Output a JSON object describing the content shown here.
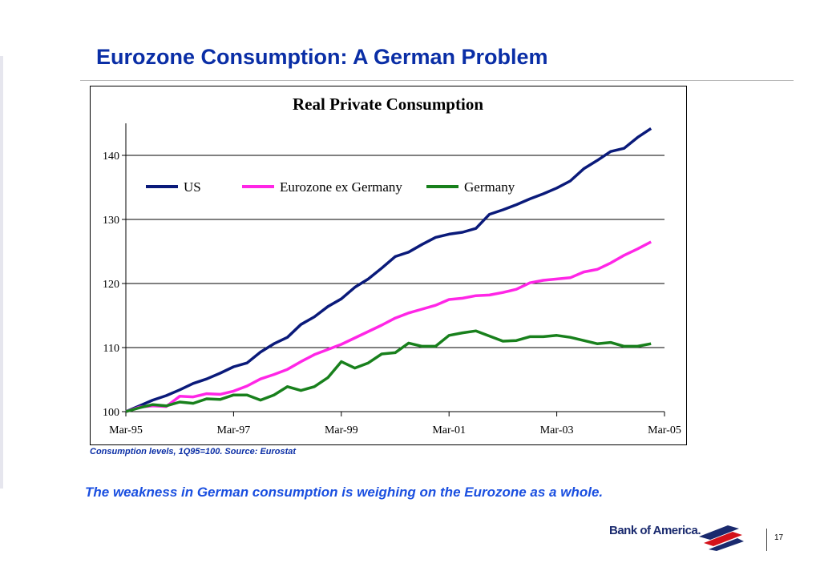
{
  "slide": {
    "title": "Eurozone Consumption: A German Problem",
    "source_note": "Consumption levels, 1Q95=100. Source: Eurostat",
    "caption": "The weakness in German consumption is weighing on the Eurozone as a whole.",
    "page_number": "17",
    "logo_text": "Bank of America."
  },
  "chart_data": {
    "type": "line",
    "title": "Real Private Consumption",
    "xlabel": "",
    "ylabel": "",
    "ylim": [
      100,
      145
    ],
    "yticks": [
      100,
      110,
      120,
      130,
      140
    ],
    "x_tick_labels": [
      "Mar-95",
      "Mar-97",
      "Mar-99",
      "Mar-01",
      "Mar-03",
      "Mar-05"
    ],
    "x_start": "1995Q1",
    "frequency": "quarterly",
    "grid": "horizontal",
    "legend_position": "top-left inside",
    "series": [
      {
        "name": "US",
        "color": "#0a1a7a",
        "values": [
          100,
          100.9,
          101.8,
          102.5,
          103.4,
          104.4,
          105.1,
          106.0,
          107.0,
          107.6,
          109.3,
          110.6,
          111.6,
          113.6,
          114.8,
          116.4,
          117.6,
          119.4,
          120.7,
          122.4,
          124.2,
          124.9,
          126.1,
          127.2,
          127.7,
          128.0,
          128.6,
          130.8,
          131.5,
          132.3,
          133.2,
          134.0,
          134.9,
          136.0,
          137.9,
          139.2,
          140.6,
          141.1,
          142.8,
          144.2
        ]
      },
      {
        "name": "Eurozone ex Germany",
        "color": "#ff26e6",
        "values": [
          100,
          100.7,
          100.9,
          100.8,
          102.4,
          102.3,
          102.8,
          102.7,
          103.2,
          104.0,
          105.1,
          105.8,
          106.6,
          107.8,
          108.9,
          109.7,
          110.5,
          111.5,
          112.5,
          113.5,
          114.6,
          115.4,
          116.0,
          116.6,
          117.5,
          117.7,
          118.1,
          118.2,
          118.6,
          119.1,
          120.1,
          120.5,
          120.7,
          120.9,
          121.8,
          122.2,
          123.2,
          124.4,
          125.4,
          126.5
        ]
      },
      {
        "name": "Germany",
        "color": "#18801c",
        "values": [
          100,
          100.6,
          101.1,
          100.9,
          101.5,
          101.3,
          102.0,
          101.9,
          102.6,
          102.6,
          101.8,
          102.6,
          103.9,
          103.3,
          103.9,
          105.3,
          107.8,
          106.8,
          107.6,
          109.0,
          109.2,
          110.7,
          110.2,
          110.2,
          111.9,
          112.3,
          112.6,
          111.8,
          111.0,
          111.1,
          111.7,
          111.7,
          111.9,
          111.6,
          111.1,
          110.6,
          110.8,
          110.2,
          110.2,
          110.6
        ]
      }
    ]
  }
}
